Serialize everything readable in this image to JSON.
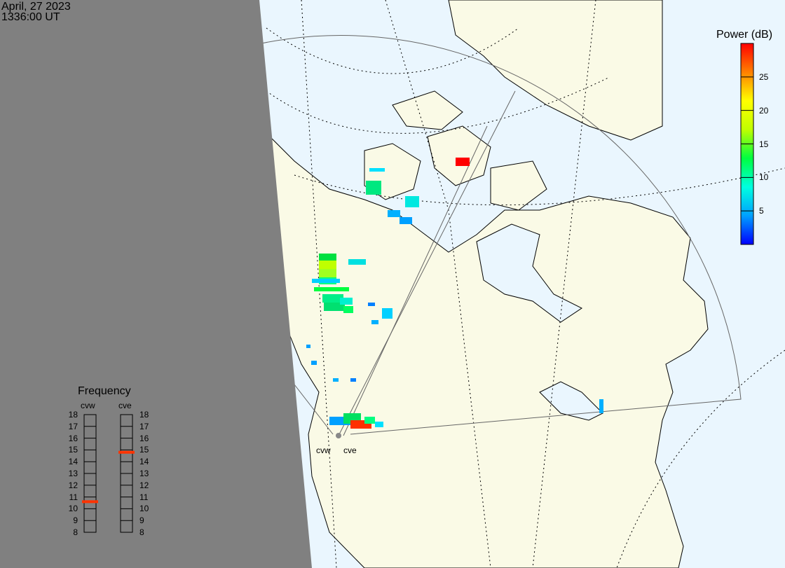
{
  "header": {
    "date": "April, 27 2023",
    "time": "1336:00 UT"
  },
  "colorbar": {
    "title": "Power (dB)",
    "range": [
      0,
      30
    ],
    "ticks": [
      "25",
      "20",
      "15",
      "10",
      "5"
    ],
    "colors": [
      "#0000ff",
      "#00a0ff",
      "#00ffe0",
      "#00ff40",
      "#c0ff00",
      "#ffff00",
      "#ff8000",
      "#ff0000"
    ]
  },
  "frequency_panel": {
    "title": "Frequency",
    "unit_range": [
      8,
      18
    ],
    "tick_labels": [
      "18",
      "17",
      "16",
      "15",
      "14",
      "13",
      "12",
      "11",
      "10",
      "9",
      "8"
    ],
    "radars": [
      {
        "name": "cvw",
        "frequency_mhz": 10.6
      },
      {
        "name": "cve",
        "frequency_mhz": 14.8
      }
    ]
  },
  "map": {
    "radar_labels": [
      "cvw",
      "cve"
    ],
    "colors": {
      "night": "#808080",
      "ocean": "#eaf6fe",
      "land": "#fafae6",
      "marker": "#ff3300"
    }
  }
}
